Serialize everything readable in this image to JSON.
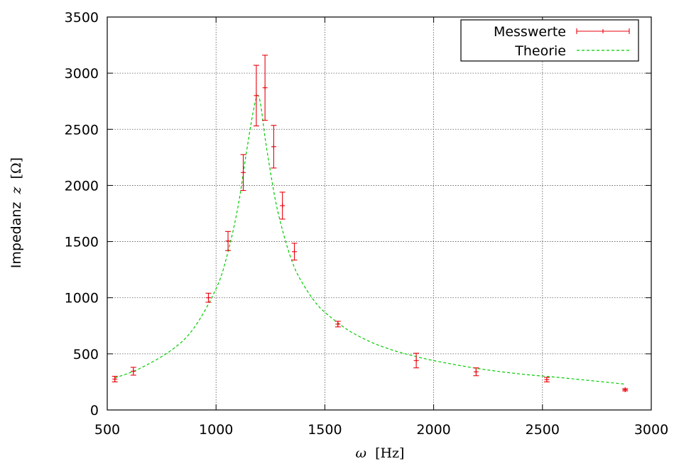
{
  "chart_data": {
    "type": "scatter",
    "xlabel_symbol": "ω",
    "xlabel_unit": "[Hz]",
    "ylabel_text": "Impedanz",
    "ylabel_symbol": "z",
    "ylabel_unit": "[Ω]",
    "xlim": [
      500,
      3000
    ],
    "ylim": [
      0,
      3500
    ],
    "x_ticks": [
      500,
      1000,
      1500,
      2000,
      2500,
      3000
    ],
    "y_ticks": [
      0,
      500,
      1000,
      1500,
      2000,
      2500,
      3000,
      3500
    ],
    "grid": true,
    "legend_position": "top-right",
    "series": [
      {
        "name": "Messwerte",
        "kind": "errorbars",
        "color": "#e8000b",
        "points": [
          {
            "x": 535,
            "y": 275,
            "err": 25
          },
          {
            "x": 620,
            "y": 345,
            "err": 35
          },
          {
            "x": 965,
            "y": 1000,
            "err": 40
          },
          {
            "x": 1055,
            "y": 1505,
            "err": 85
          },
          {
            "x": 1125,
            "y": 2115,
            "err": 160
          },
          {
            "x": 1185,
            "y": 2800,
            "err": 270
          },
          {
            "x": 1225,
            "y": 2870,
            "err": 290
          },
          {
            "x": 1265,
            "y": 2345,
            "err": 190
          },
          {
            "x": 1305,
            "y": 1820,
            "err": 120
          },
          {
            "x": 1360,
            "y": 1410,
            "err": 75
          },
          {
            "x": 1560,
            "y": 765,
            "err": 25
          },
          {
            "x": 1920,
            "y": 440,
            "err": 65
          },
          {
            "x": 2195,
            "y": 340,
            "err": 35
          },
          {
            "x": 2520,
            "y": 270,
            "err": 20
          },
          {
            "x": 2880,
            "y": 180,
            "err": 10
          }
        ]
      },
      {
        "name": "Theorie",
        "kind": "line",
        "color": "#00cc00",
        "dashed": true,
        "x": [
          535,
          650,
          800,
          900,
          1000,
          1050,
          1100,
          1140,
          1170,
          1190,
          1205,
          1225,
          1250,
          1280,
          1320,
          1360,
          1400,
          1450,
          1500,
          1600,
          1700,
          1800,
          1900,
          2000,
          2200,
          2400,
          2600,
          2880
        ],
        "y": [
          285,
          370,
          540,
          735,
          1080,
          1370,
          1800,
          2300,
          2650,
          2800,
          2720,
          2430,
          2120,
          1800,
          1500,
          1270,
          1120,
          975,
          870,
          720,
          615,
          540,
          485,
          440,
          370,
          320,
          285,
          230
        ]
      }
    ]
  }
}
